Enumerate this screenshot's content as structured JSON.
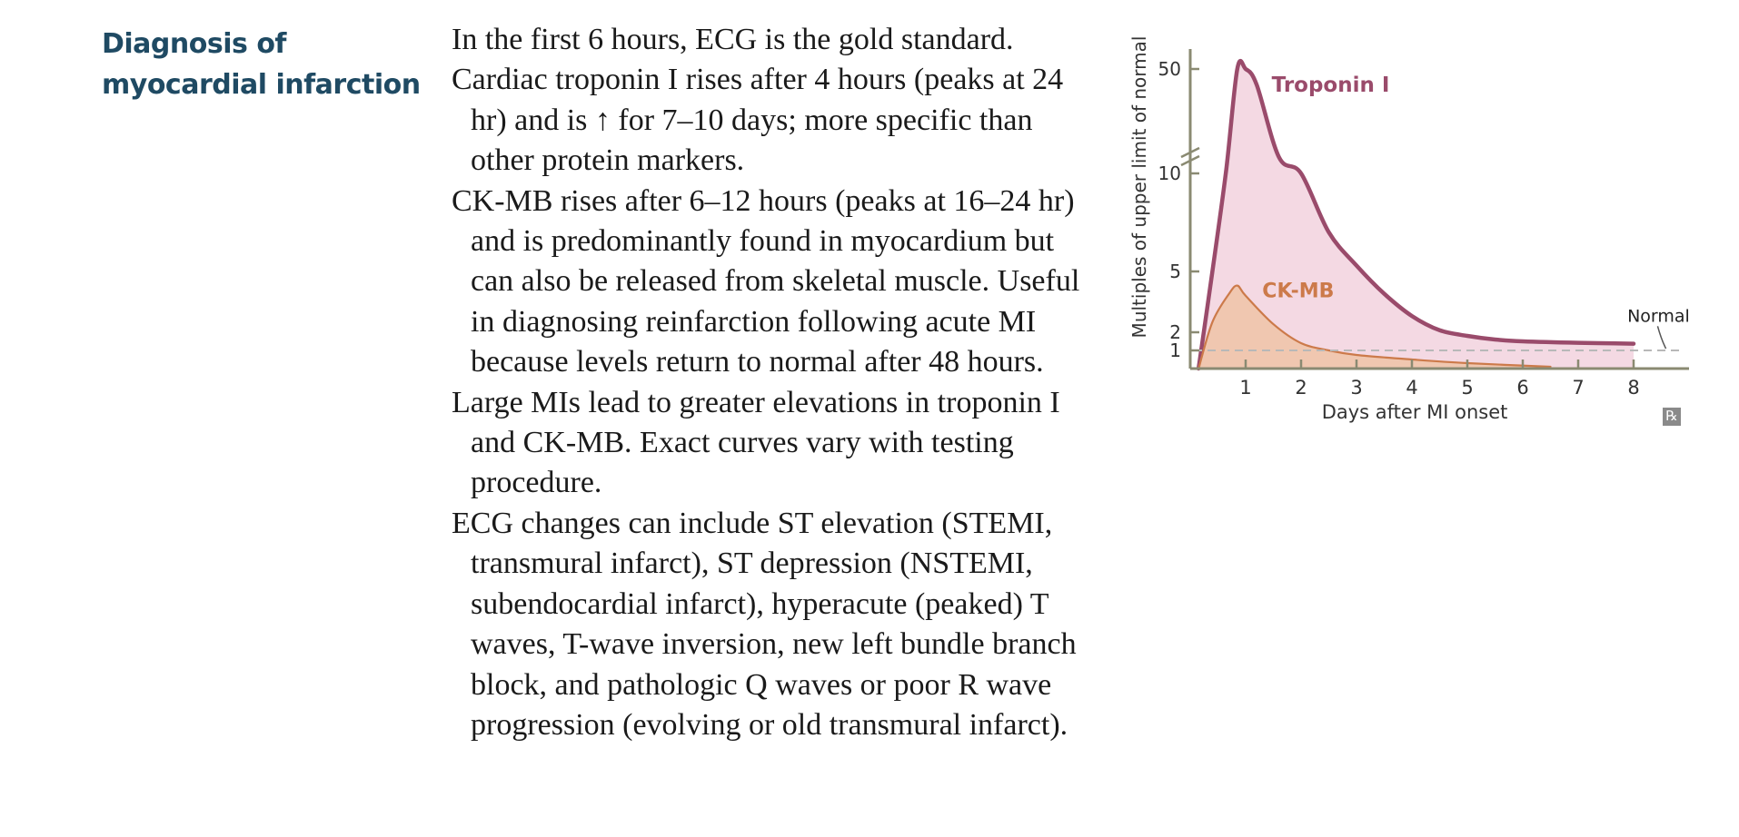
{
  "section": {
    "heading_line1": "Diagnosis of",
    "heading_line2": "myocardial infarction"
  },
  "paragraphs": [
    {
      "text": "In the first 6 hours, ECG is the gold standard."
    },
    {
      "text": "Cardiac troponin I rises after 4 hours (peaks at 24 hr) and is ↑ for 7–10 days; more specific than other protein markers."
    },
    {
      "text": "CK-MB rises after 6–12 hours (peaks at 16–24 hr) and is predominantly found in myocardium but can also be released from skeletal muscle. Useful in diagnosing reinfarction following acute MI because levels return to normal after 48 hours."
    },
    {
      "text": "Large MIs lead to greater elevations in troponin I and CK-MB. Exact curves vary with testing procedure."
    },
    {
      "text": "ECG changes can include ST elevation (STEMI, transmural infarct), ST depression (NSTEMI, subendocardial infarct), hyperacute (peaked) T waves, T-wave inversion, new left bundle branch block, and pathologic Q waves or poor R wave progression (evolving or old transmural infarct)."
    }
  ],
  "chart_data": {
    "type": "area",
    "xlabel": "Days after MI onset",
    "ylabel": "Multiples of upper limit of normal",
    "x_ticks": [
      1,
      2,
      3,
      4,
      5,
      6,
      7,
      8
    ],
    "y_ticks": [
      1,
      2,
      5,
      10,
      50
    ],
    "xlim": [
      0,
      9
    ],
    "axis_break": "between 10 and 50",
    "normal_line": {
      "label": "Normal",
      "y": 1
    },
    "series": [
      {
        "name": "Troponin I",
        "color": "#9a4b6b",
        "fill": "#f3d5e0",
        "points": [
          [
            0.15,
            0
          ],
          [
            0.4,
            5
          ],
          [
            0.65,
            12
          ],
          [
            0.85,
            50
          ],
          [
            1.0,
            50
          ],
          [
            1.2,
            45
          ],
          [
            1.6,
            18
          ],
          [
            2.0,
            10
          ],
          [
            2.5,
            7
          ],
          [
            3.0,
            5.3
          ],
          [
            3.5,
            3.9
          ],
          [
            4.0,
            2.8
          ],
          [
            4.5,
            2.1
          ],
          [
            5.0,
            1.8
          ],
          [
            5.5,
            1.6
          ],
          [
            6.0,
            1.5
          ],
          [
            7.0,
            1.42
          ],
          [
            8.0,
            1.37
          ]
        ]
      },
      {
        "name": "CK-MB",
        "color": "#cc7a4a",
        "fill": "#efc6ad",
        "points": [
          [
            0.15,
            0
          ],
          [
            0.4,
            2.5
          ],
          [
            0.7,
            3.9
          ],
          [
            0.85,
            4.3
          ],
          [
            1.0,
            3.8
          ],
          [
            1.5,
            2.4
          ],
          [
            2.0,
            1.4
          ],
          [
            2.5,
            1.0
          ],
          [
            3.0,
            0.75
          ],
          [
            4.0,
            0.5
          ],
          [
            5.0,
            0.3
          ],
          [
            6.5,
            0.1
          ]
        ]
      }
    ]
  },
  "badge": {
    "rx": "℞"
  }
}
